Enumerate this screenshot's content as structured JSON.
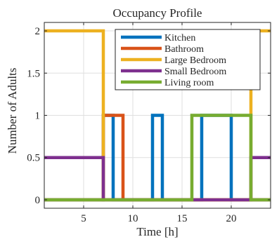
{
  "chart_data": {
    "type": "line",
    "title": "Occupancy Profile",
    "xlabel": "Time [h]",
    "ylabel": "Number of Adults",
    "xlim": [
      1,
      24
    ],
    "ylim": [
      -0.1,
      2.1
    ],
    "x_ticks": [
      5,
      10,
      15,
      20
    ],
    "y_ticks": [
      0,
      0.5,
      1,
      1.5,
      2
    ],
    "y_tick_labels": [
      "0",
      "0.5",
      "1",
      "1.5",
      "2"
    ],
    "grid": true,
    "legend_position": "top-center",
    "series": [
      {
        "name": "Kitchen",
        "color": "#0072BD",
        "x": [
          1,
          7,
          7,
          8,
          8,
          12,
          12,
          13,
          13,
          17,
          17,
          20,
          20,
          24
        ],
        "y": [
          0,
          0,
          1,
          1,
          0,
          0,
          1,
          1,
          0,
          0,
          1,
          1,
          0,
          0
        ]
      },
      {
        "name": "Bathroom",
        "color": "#D95319",
        "x": [
          1,
          7,
          7,
          9,
          9,
          24
        ],
        "y": [
          0,
          0,
          1,
          1,
          0,
          0
        ]
      },
      {
        "name": "Large Bedroom",
        "color": "#EDB120",
        "x": [
          1,
          7,
          7,
          22,
          22,
          24
        ],
        "y": [
          2,
          2,
          0,
          0,
          2,
          2
        ]
      },
      {
        "name": "Small Bedroom",
        "color": "#7E2F8E",
        "x": [
          1,
          7,
          7,
          22,
          22,
          24
        ],
        "y": [
          0.5,
          0.5,
          0,
          0,
          0.5,
          0.5
        ]
      },
      {
        "name": "Living room",
        "color": "#77AC30",
        "x": [
          1,
          16,
          16,
          22,
          22,
          24
        ],
        "y": [
          0,
          0,
          1,
          1,
          0,
          0
        ]
      }
    ]
  }
}
